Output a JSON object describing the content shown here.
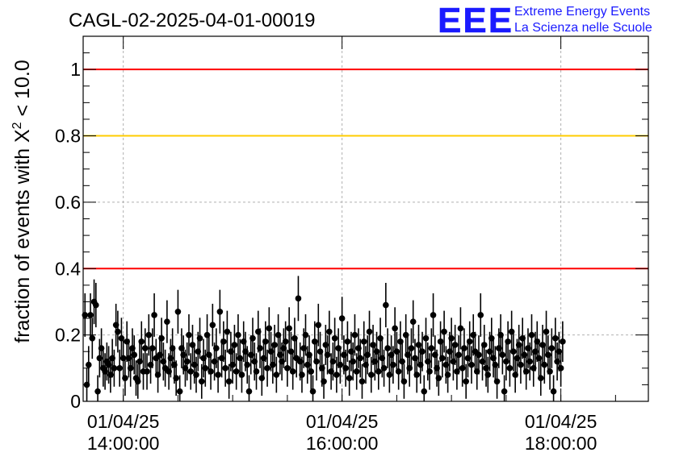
{
  "header": {
    "run_title": "CAGL-02-2025-04-01-00019",
    "logo_text": "EEE",
    "logo_line1": "Extreme Energy Events",
    "logo_line2": "La Scienza nelle Scuole"
  },
  "colors": {
    "threshold_red": "#ff0000",
    "threshold_yellow": "#ffcc00",
    "points": "#000000",
    "logo_blue": "#1a1aff",
    "grid": "#b0b0b0"
  },
  "chart_data": {
    "type": "scatter",
    "title": "CAGL-02-2025-04-01-00019",
    "xlabel": "",
    "ylabel_prefix": "fraction of events with ",
    "ylabel_symbol": "X",
    "ylabel_sup": "2",
    "ylabel_suffix": " < 10.0",
    "x_axis": "time",
    "xlim": [
      "2025-04-01T13:38:00",
      "2025-04-01T18:48:00"
    ],
    "ylim": [
      0,
      1.1
    ],
    "yticks": [
      0,
      0.2,
      0.4,
      0.6,
      0.8,
      1
    ],
    "ytick_labels": [
      "0",
      "0.2",
      "0.4",
      "0.6",
      "0.8",
      "1"
    ],
    "xticks": [
      {
        "date": "01/04/25",
        "time": "14:00:00",
        "iso": "2025-04-01T14:00:00"
      },
      {
        "date": "01/04/25",
        "time": "16:00:00",
        "iso": "2025-04-01T16:00:00"
      },
      {
        "date": "01/04/25",
        "time": "18:00:00",
        "iso": "2025-04-01T18:00:00"
      }
    ],
    "grid": true,
    "reference_lines": [
      {
        "y": 1.0,
        "color": "#ff0000"
      },
      {
        "y": 0.8,
        "color": "#ffcc00"
      },
      {
        "y": 0.4,
        "color": "#ff0000"
      }
    ],
    "series": [
      {
        "marker": "filled-circle",
        "error_bars": true,
        "x_start": "2025-04-01T13:39:00",
        "x_step_seconds": 60,
        "y": [
          0.26,
          0.05,
          0.11,
          0.26,
          0.19,
          0.3,
          0.29,
          0.03,
          0.13,
          0.16,
          0.1,
          0.09,
          0.12,
          0.11,
          0.08,
          0.13,
          0.1,
          0.23,
          0.21,
          0.1,
          0.19,
          0.13,
          0.07,
          0.18,
          0.13,
          0.1,
          0.16,
          0.14,
          0.07,
          0.06,
          0.12,
          0.18,
          0.09,
          0.16,
          0.09,
          0.2,
          0.11,
          0.16,
          0.26,
          0.13,
          0.08,
          0.14,
          0.19,
          0.12,
          0.1,
          0.24,
          0.09,
          0.13,
          0.16,
          0.11,
          0.07,
          0.27,
          0.03,
          0.16,
          0.14,
          0.1,
          0.12,
          0.2,
          0.09,
          0.17,
          0.11,
          0.08,
          0.15,
          0.19,
          0.06,
          0.13,
          0.1,
          0.2,
          0.14,
          0.09,
          0.23,
          0.12,
          0.16,
          0.08,
          0.27,
          0.13,
          0.18,
          0.1,
          0.21,
          0.06,
          0.15,
          0.11,
          0.17,
          0.09,
          0.2,
          0.13,
          0.08,
          0.18,
          0.15,
          0.11,
          0.03,
          0.14,
          0.19,
          0.12,
          0.09,
          0.21,
          0.16,
          0.07,
          0.13,
          0.18,
          0.1,
          0.22,
          0.15,
          0.11,
          0.17,
          0.08,
          0.2,
          0.14,
          0.12,
          0.16,
          0.18,
          0.1,
          0.22,
          0.15,
          0.09,
          0.19,
          0.13,
          0.31,
          0.12,
          0.08,
          0.16,
          0.2,
          0.11,
          0.14,
          0.09,
          0.03,
          0.18,
          0.12,
          0.23,
          0.15,
          0.1,
          0.06,
          0.17,
          0.14,
          0.21,
          0.09,
          0.12,
          0.19,
          0.08,
          0.16,
          0.11,
          0.25,
          0.14,
          0.1,
          0.18,
          0.07,
          0.15,
          0.12,
          0.2,
          0.09,
          0.16,
          0.13,
          0.06,
          0.18,
          0.11,
          0.14,
          0.21,
          0.08,
          0.17,
          0.12,
          0.15,
          0.09,
          0.19,
          0.13,
          0.1,
          0.29,
          0.16,
          0.08,
          0.14,
          0.11,
          0.22,
          0.15,
          0.09,
          0.18,
          0.12,
          0.06,
          0.2,
          0.14,
          0.1,
          0.16,
          0.24,
          0.13,
          0.08,
          0.17,
          0.11,
          0.15,
          0.03,
          0.19,
          0.12,
          0.09,
          0.16,
          0.26,
          0.14,
          0.1,
          0.07,
          0.18,
          0.13,
          0.21,
          0.11,
          0.08,
          0.15,
          0.19,
          0.12,
          0.17,
          0.09,
          0.14,
          0.22,
          0.1,
          0.16,
          0.06,
          0.13,
          0.18,
          0.11,
          0.2,
          0.15,
          0.09,
          0.14,
          0.26,
          0.12,
          0.17,
          0.1,
          0.08,
          0.15,
          0.19,
          0.13,
          0.11,
          0.06,
          0.16,
          0.2,
          0.14,
          0.03,
          0.12,
          0.18,
          0.1,
          0.21,
          0.15,
          0.08,
          0.13,
          0.17,
          0.11,
          0.19,
          0.14,
          0.09,
          0.16,
          0.12,
          0.2,
          0.1,
          0.15,
          0.18,
          0.13,
          0.07,
          0.17,
          0.11,
          0.21,
          0.14,
          0.09,
          0.16,
          0.03,
          0.19,
          0.12,
          0.15,
          0.1,
          0.18
        ]
      }
    ]
  }
}
